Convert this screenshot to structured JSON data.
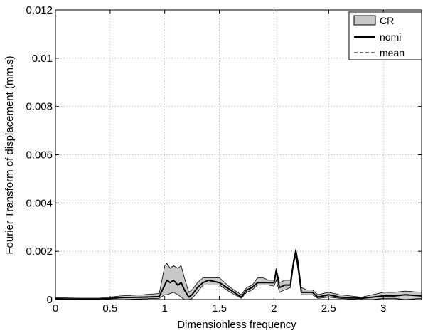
{
  "chart_data": {
    "type": "line",
    "title": "",
    "xlabel": "Dimensionless frequency",
    "ylabel": "Fourier Transform of displacement (mm.s)",
    "xlim": [
      0,
      3.35
    ],
    "ylim": [
      0,
      0.012
    ],
    "grid": true,
    "legend_position": "top-right",
    "x_ticks": [
      0,
      0.5,
      1,
      1.5,
      2,
      2.5,
      3
    ],
    "x_tick_labels": [
      "0",
      "0.5",
      "1",
      "1.5",
      "2",
      "2.5",
      "3"
    ],
    "y_ticks": [
      0,
      0.002,
      0.004,
      0.006,
      0.008,
      0.01,
      0.012
    ],
    "y_tick_labels": [
      "0",
      "0.002",
      "0.004",
      "0.006",
      "0.008",
      "0.01",
      "0.012"
    ],
    "legend": [
      {
        "label": "CR",
        "style": "band"
      },
      {
        "label": "nomi",
        "style": "solid"
      },
      {
        "label": "mean",
        "style": "dashed"
      }
    ],
    "colors": {
      "band_fill": "#c8c8c8",
      "line": "#000000",
      "grid": "#9a9a9a"
    },
    "series": [
      {
        "name": "CR",
        "type": "band",
        "x": [
          0,
          0.2,
          0.4,
          0.6,
          0.8,
          0.95,
          1.0,
          1.02,
          1.05,
          1.08,
          1.12,
          1.15,
          1.18,
          1.22,
          1.25,
          1.3,
          1.35,
          1.4,
          1.5,
          1.6,
          1.7,
          1.75,
          1.8,
          1.85,
          1.9,
          1.95,
          2.0,
          2.02,
          2.05,
          2.1,
          2.15,
          2.18,
          2.2,
          2.22,
          2.25,
          2.3,
          2.35,
          2.4,
          2.5,
          2.6,
          2.8,
          2.9,
          3.0,
          3.1,
          3.2,
          3.35
        ],
        "lower": [
          0.0,
          0.0,
          0.0,
          0.0,
          3e-05,
          5e-05,
          0.0002,
          0.0002,
          0.00025,
          0.0003,
          0.0002,
          0.0001,
          0.0,
          0.0,
          5e-05,
          0.0003,
          0.0006,
          0.0006,
          0.0006,
          0.0003,
          5e-05,
          0.0003,
          0.0004,
          0.0006,
          0.0006,
          0.0006,
          0.00055,
          0.0008,
          0.0003,
          0.0004,
          0.0005,
          0.0015,
          0.0018,
          0.0012,
          0.0002,
          0.0002,
          0.0002,
          5e-05,
          0.0001,
          5e-05,
          0.0,
          0.0,
          5e-05,
          5e-05,
          0.0,
          5e-05
        ],
        "upper": [
          8e-05,
          6e-05,
          6e-05,
          0.00015,
          0.0002,
          0.00025,
          0.0014,
          0.0015,
          0.0013,
          0.0014,
          0.0013,
          0.0014,
          0.0009,
          0.0003,
          0.0004,
          0.0007,
          0.0009,
          0.0009,
          0.0009,
          0.0005,
          0.0002,
          0.0005,
          0.0006,
          0.0009,
          0.0009,
          0.0008,
          0.0008,
          0.0013,
          0.0007,
          0.0008,
          0.0008,
          0.0017,
          0.0021,
          0.0016,
          0.0005,
          0.0004,
          0.0004,
          0.0002,
          0.0003,
          0.0002,
          0.0001,
          0.0002,
          0.0003,
          0.0003,
          0.00035,
          0.0003
        ]
      },
      {
        "name": "nomi",
        "type": "line",
        "x": [
          0,
          0.2,
          0.4,
          0.6,
          0.8,
          0.95,
          1.0,
          1.02,
          1.05,
          1.08,
          1.12,
          1.15,
          1.18,
          1.22,
          1.25,
          1.3,
          1.35,
          1.4,
          1.5,
          1.6,
          1.7,
          1.75,
          1.8,
          1.85,
          1.9,
          1.95,
          2.0,
          2.02,
          2.05,
          2.1,
          2.15,
          2.18,
          2.2,
          2.22,
          2.25,
          2.3,
          2.35,
          2.4,
          2.5,
          2.6,
          2.8,
          2.9,
          3.0,
          3.1,
          3.2,
          3.35
        ],
        "values": [
          3e-05,
          2e-05,
          2e-05,
          8e-05,
          0.0001,
          0.00012,
          0.0006,
          0.0008,
          0.0007,
          0.0008,
          0.0006,
          0.0007,
          0.0004,
          0.0001,
          0.0002,
          0.0005,
          0.0007,
          0.0008,
          0.0007,
          0.0004,
          0.0001,
          0.0004,
          0.0005,
          0.0007,
          0.0007,
          0.0007,
          0.0007,
          0.0012,
          0.0005,
          0.0006,
          0.0006,
          0.0016,
          0.002,
          0.0014,
          0.0003,
          0.0003,
          0.0003,
          0.0001,
          0.0002,
          0.0001,
          5e-05,
          0.0001,
          0.00015,
          0.00015,
          0.0002,
          0.00015
        ]
      },
      {
        "name": "mean",
        "type": "line",
        "x": [
          0,
          0.2,
          0.4,
          0.6,
          0.8,
          0.95,
          1.0,
          1.02,
          1.05,
          1.08,
          1.12,
          1.15,
          1.18,
          1.22,
          1.25,
          1.3,
          1.35,
          1.4,
          1.5,
          1.6,
          1.7,
          1.75,
          1.8,
          1.85,
          1.9,
          1.95,
          2.0,
          2.02,
          2.05,
          2.1,
          2.15,
          2.18,
          2.2,
          2.22,
          2.25,
          2.3,
          2.35,
          2.4,
          2.5,
          2.6,
          2.8,
          2.9,
          3.0,
          3.1,
          3.2,
          3.35
        ],
        "values": [
          3e-05,
          2e-05,
          2e-05,
          8e-05,
          0.0001,
          0.00012,
          0.0006,
          0.0008,
          0.0007,
          0.0008,
          0.0006,
          0.0007,
          0.0004,
          0.0001,
          0.0002,
          0.0005,
          0.0007,
          0.0008,
          0.0007,
          0.0004,
          0.0001,
          0.0004,
          0.0005,
          0.0007,
          0.0007,
          0.0007,
          0.0007,
          0.0012,
          0.0005,
          0.0006,
          0.0006,
          0.0016,
          0.002,
          0.0014,
          0.0003,
          0.0003,
          0.0003,
          0.0001,
          0.0002,
          0.0001,
          5e-05,
          0.0001,
          0.00015,
          0.00015,
          0.0002,
          0.00015
        ]
      }
    ]
  }
}
